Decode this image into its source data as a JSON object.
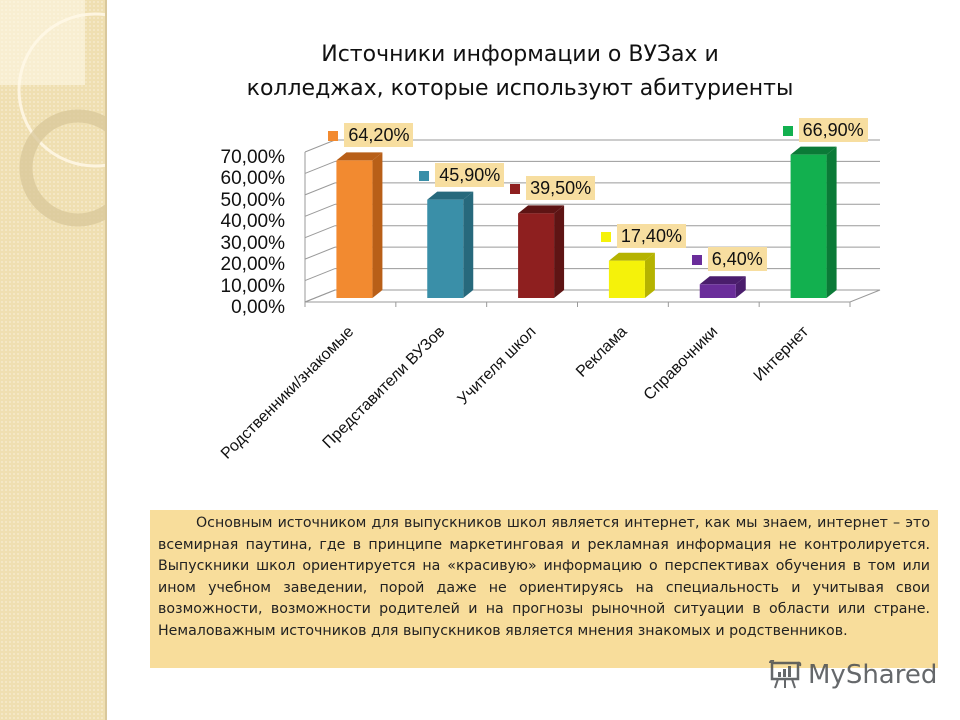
{
  "slide": {
    "title_line1": "Источники информации о ВУЗах и",
    "title_line2": "колледжах, которые используют абитуриенты",
    "body_text": "Основным источником для выпускников школ является интернет, как мы знаем, интернет – это всемирная паутина, где в принципе маркетинговая и рекламная информация не контролируется. Выпускники школ ориентируется на «красивую» информацию о перспективах обучения в том или ином учебном заведении, порой даже не ориентируясь на специальность и учитывая свои возможности, возможности родителей и  на прогнозы рыночной ситуации  в области или стране. Немаловажным источников для выпускников является мнения знакомых и родственников.",
    "watermark": "MyShared"
  },
  "chart_data": {
    "type": "bar",
    "title": "Источники информации о ВУЗах и колледжах, которые используют абитуриенты",
    "xlabel": "",
    "ylabel": "",
    "categories": [
      "Родственники/знакомые",
      "Представители ВУЗов",
      "Учителя школ",
      "Реклама",
      "Справочники",
      "Интернет"
    ],
    "values": [
      64.2,
      45.9,
      39.5,
      17.4,
      6.4,
      66.9
    ],
    "value_labels": [
      "64,20%",
      "45,90%",
      "39,50%",
      "17,40%",
      "6,40%",
      "66,90%"
    ],
    "colors": [
      "#f28a30",
      "#3a8fa8",
      "#8e1f1f",
      "#f5f20a",
      "#6a2d9a",
      "#12b04f"
    ],
    "side_colors": [
      "#b85f18",
      "#27697c",
      "#5e1414",
      "#b5b300",
      "#4a1d6c",
      "#0b7a37"
    ],
    "y_ticks": [
      "0,00%",
      "10,00%",
      "20,00%",
      "30,00%",
      "40,00%",
      "50,00%",
      "60,00%",
      "70,00%"
    ],
    "ylim": [
      0,
      70
    ],
    "grid": true,
    "style": "3d-column",
    "legend": null
  }
}
